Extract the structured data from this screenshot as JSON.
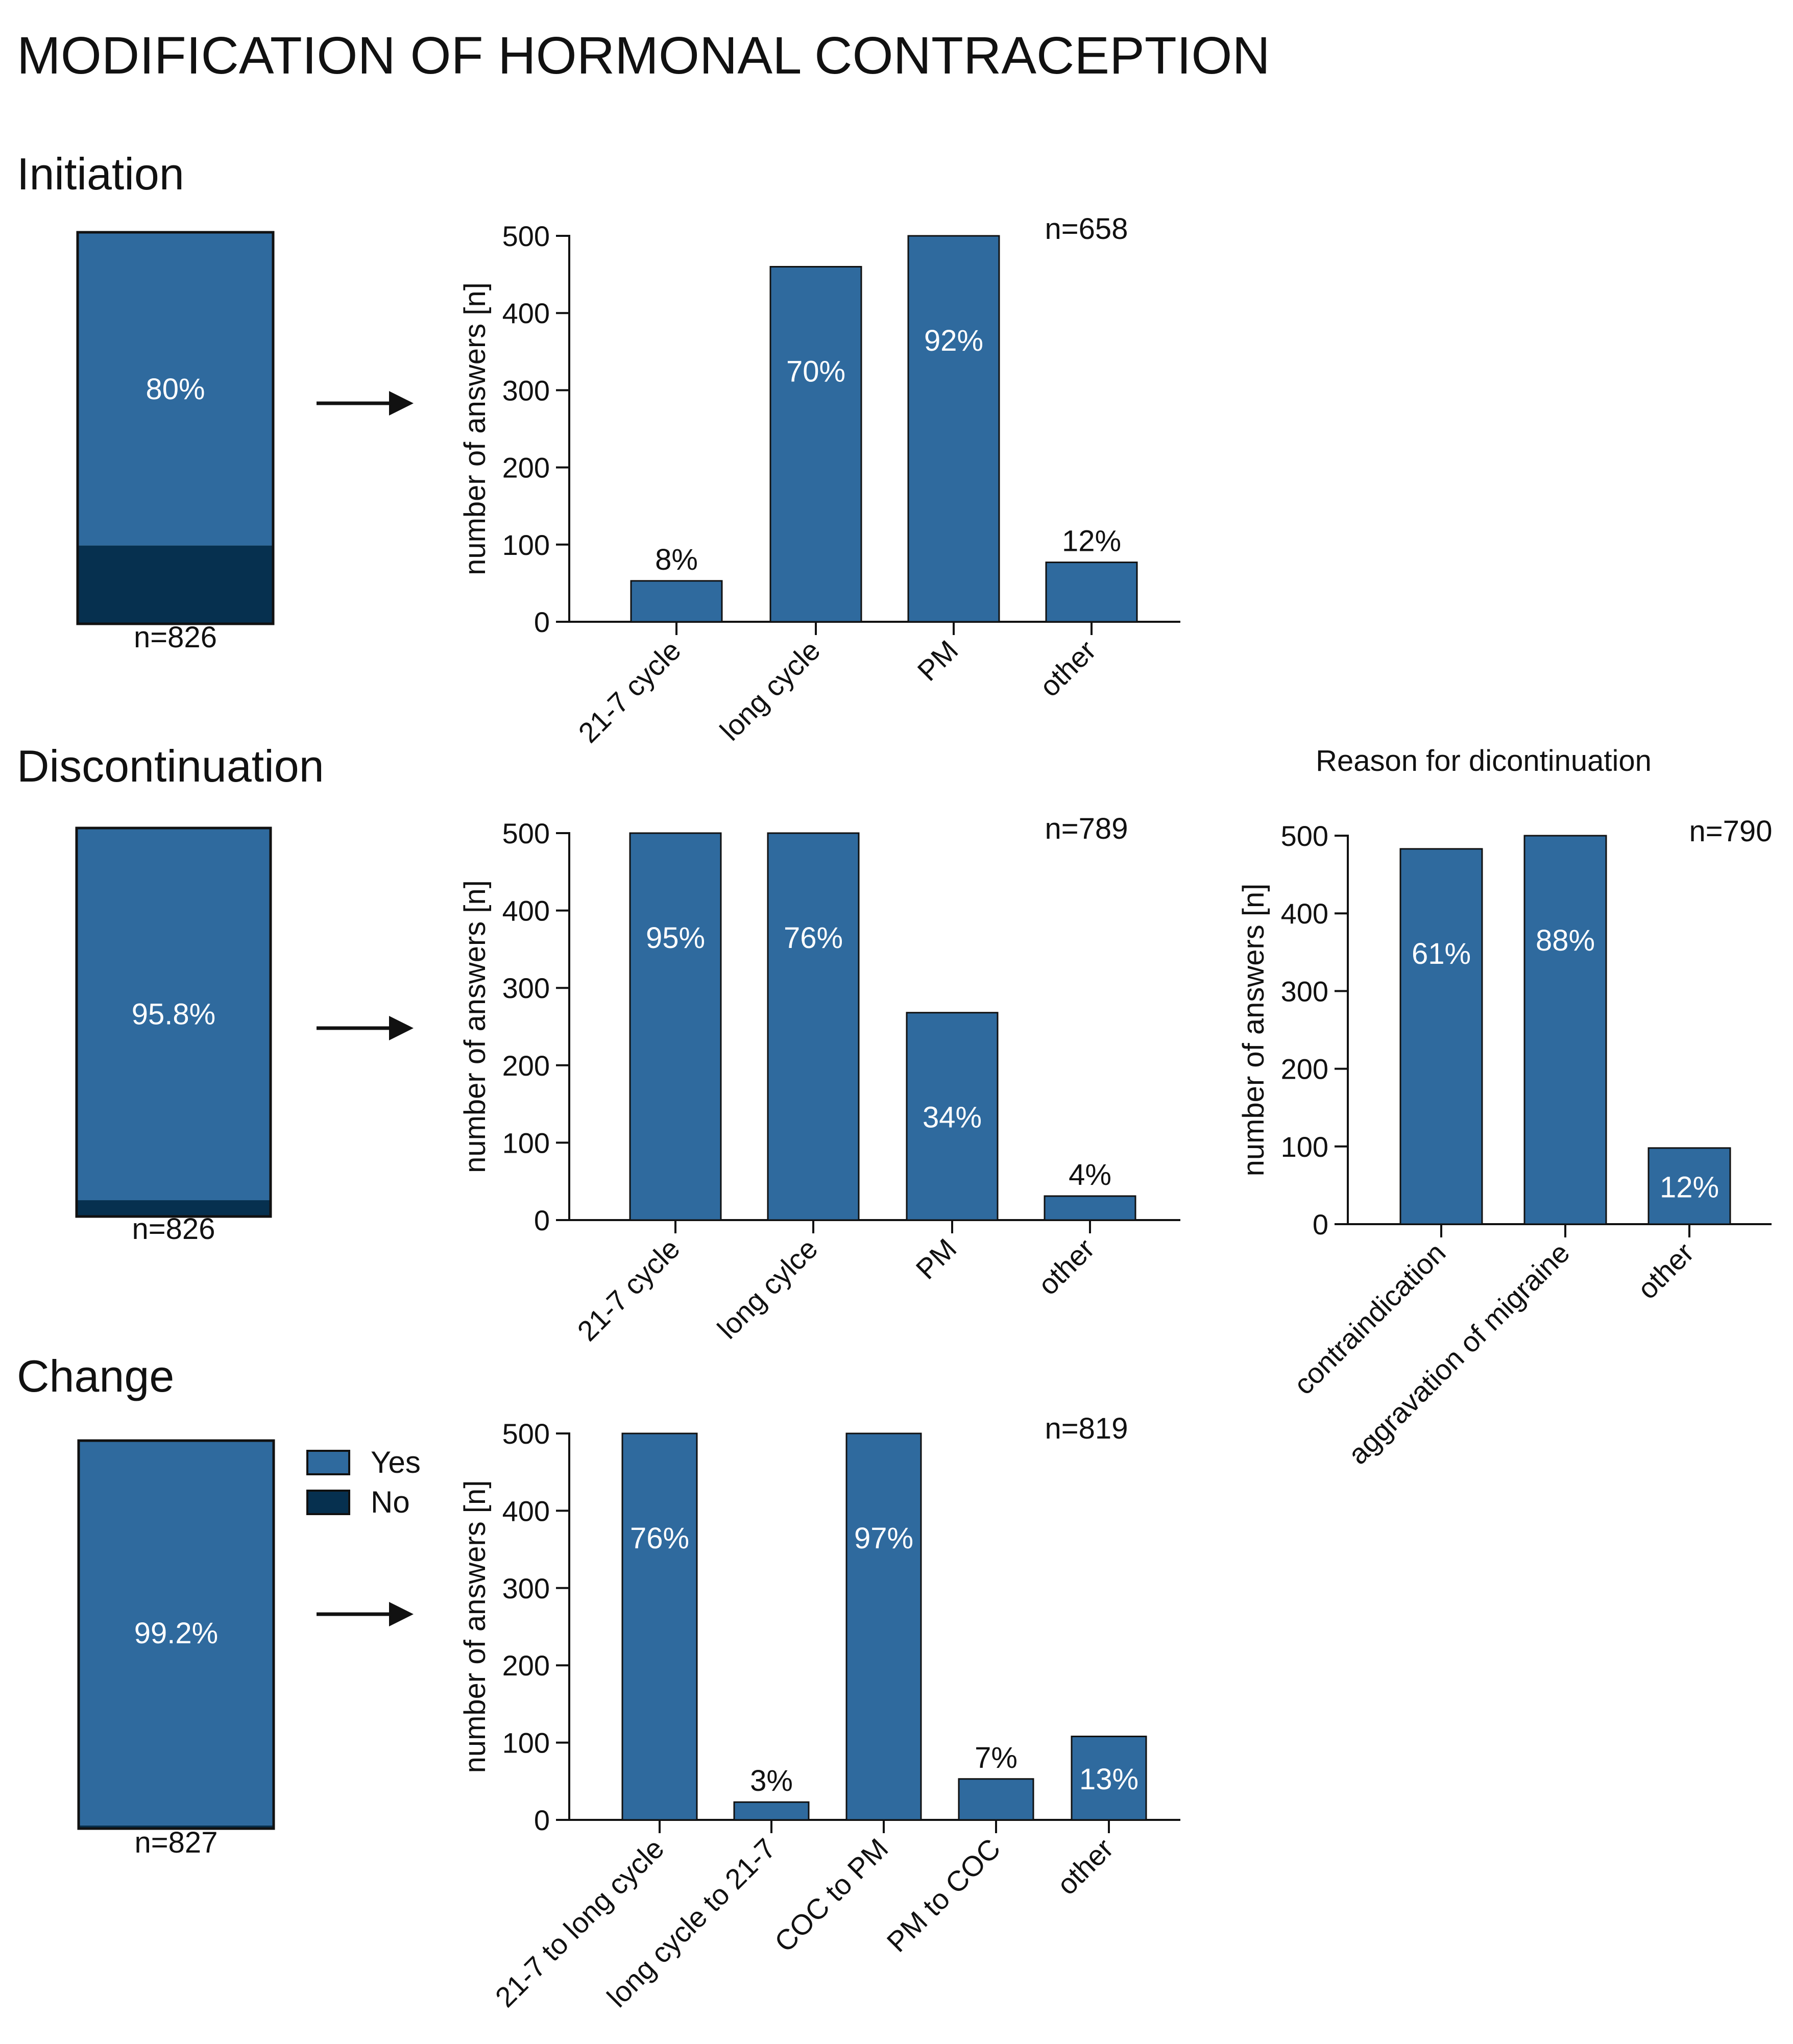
{
  "title": "MODIFICATION OF HORMONAL CONTRACEPTION",
  "colors": {
    "yes": "#2f6a9e",
    "no": "#06304f",
    "axis": "#111111",
    "bar_text": "#ffffff"
  },
  "legend": {
    "yes": "Yes",
    "no": "No"
  },
  "sections": {
    "initiation": "Initiation",
    "discontinuation": "Discontinuation",
    "change": "Change"
  },
  "chart_data": [
    {
      "id": "initiation-stack",
      "type": "bar",
      "title": "Initiation",
      "stacked": true,
      "series": [
        {
          "name": "Yes",
          "value": 80
        },
        {
          "name": "No",
          "value": 20
        }
      ],
      "value_label": "80%",
      "n_label": "n=826"
    },
    {
      "id": "initiation-bars",
      "type": "bar",
      "ylabel": "number of answers [n]",
      "ylim": [
        0,
        500
      ],
      "yticks": [
        "0",
        "100",
        "200",
        "300",
        "400",
        "500"
      ],
      "categories": [
        "21-7 cycle",
        "long cycle",
        "PM",
        "other"
      ],
      "values": [
        53,
        460,
        500,
        77
      ],
      "labels": [
        "8%",
        "70%",
        "92%",
        "12%"
      ],
      "n_label": "n=658"
    },
    {
      "id": "discontinuation-stack",
      "type": "bar",
      "title": "Discontinuation",
      "stacked": true,
      "series": [
        {
          "name": "Yes",
          "value": 95.8
        },
        {
          "name": "No",
          "value": 4.2
        }
      ],
      "value_label": "95.8%",
      "n_label": "n=826"
    },
    {
      "id": "discontinuation-bars",
      "type": "bar",
      "ylabel": "number of answers [n]",
      "ylim": [
        0,
        500
      ],
      "yticks": [
        "0",
        "100",
        "200",
        "300",
        "400",
        "500"
      ],
      "categories": [
        "21-7 cycle",
        "long cylce",
        "PM",
        "other"
      ],
      "values": [
        500,
        500,
        268,
        31
      ],
      "labels": [
        "95%",
        "76%",
        "34%",
        "4%"
      ],
      "n_label": "n=789"
    },
    {
      "id": "reason-bars",
      "type": "bar",
      "title": "Reason for dicontinuation",
      "ylabel": "number of answers [n]",
      "ylim": [
        0,
        500
      ],
      "yticks": [
        "0",
        "100",
        "200",
        "300",
        "400",
        "500"
      ],
      "categories": [
        "contraindication",
        "aggravation of migraine",
        "other"
      ],
      "values": [
        483,
        500,
        98
      ],
      "labels": [
        "61%",
        "88%",
        "12%"
      ],
      "n_label": "n=790"
    },
    {
      "id": "change-stack",
      "type": "bar",
      "title": "Change",
      "stacked": true,
      "series": [
        {
          "name": "Yes",
          "value": 99.2
        },
        {
          "name": "No",
          "value": 0.8
        }
      ],
      "value_label": "99.2%",
      "n_label": "n=827"
    },
    {
      "id": "change-bars",
      "type": "bar",
      "ylabel": "number of answers [n]",
      "ylim": [
        0,
        500
      ],
      "yticks": [
        "0",
        "100",
        "200",
        "300",
        "400",
        "500"
      ],
      "categories": [
        "21-7 to long cycle",
        "long cycle to 21-7",
        "COC to PM",
        "PM to COC",
        "other"
      ],
      "values": [
        500,
        23,
        500,
        53,
        108
      ],
      "labels": [
        "76%",
        "3%",
        "97%",
        "7%",
        "13%"
      ],
      "n_label": "n=819"
    }
  ]
}
